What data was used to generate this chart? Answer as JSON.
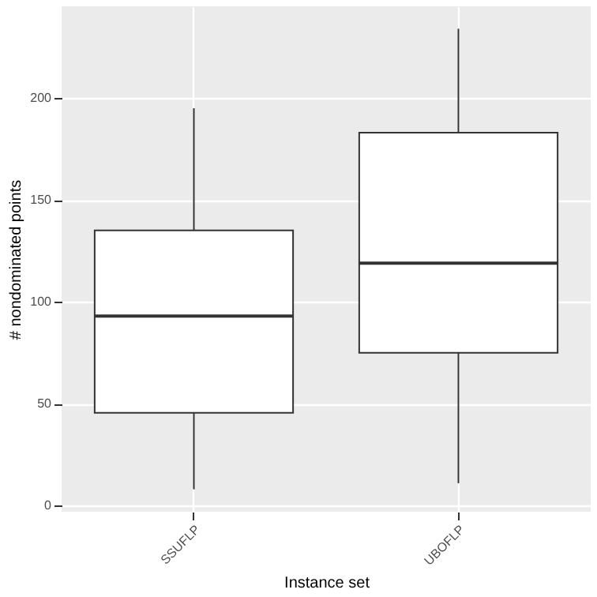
{
  "chart_data": {
    "type": "box",
    "xlabel": "Instance set",
    "ylabel": "# nondominated points",
    "categories": [
      "SSUFLP",
      "UBOFLP"
    ],
    "boxes": [
      {
        "low": 8,
        "q1": 45.5,
        "median": 93,
        "q3": 135,
        "high": 195
      },
      {
        "low": 11,
        "q1": 75,
        "median": 119,
        "q3": 183,
        "high": 234
      }
    ],
    "ylim": [
      -3,
      245
    ],
    "yticks": [
      0,
      50,
      100,
      150,
      200
    ],
    "grid": true
  }
}
